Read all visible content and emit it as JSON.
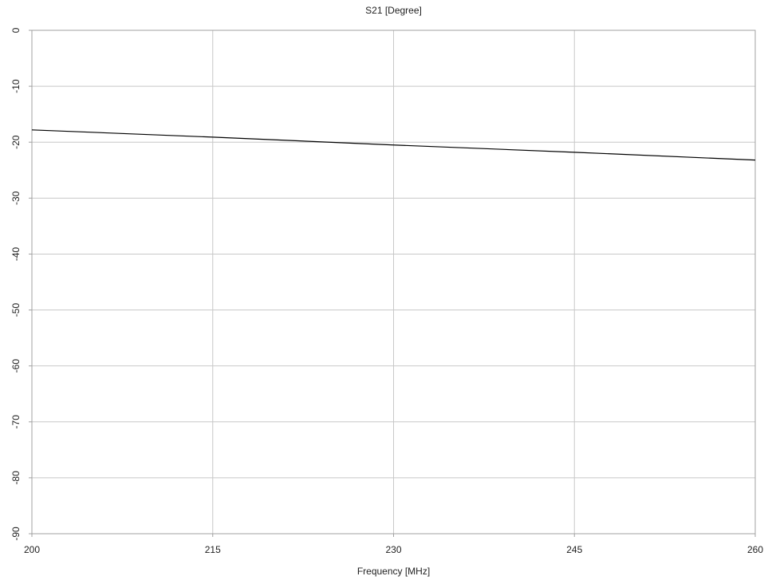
{
  "chart_data": {
    "type": "line",
    "title": "S21 [Degree]",
    "xlabel": "Frequency [MHz]",
    "ylabel": "",
    "xlim": [
      200,
      260
    ],
    "ylim": [
      -90,
      0
    ],
    "x_ticks": [
      200,
      215,
      230,
      245,
      260
    ],
    "y_ticks": [
      0,
      -10,
      -20,
      -30,
      -40,
      -50,
      -60,
      -70,
      -80,
      -90
    ],
    "grid": true,
    "legend": "none",
    "series": [
      {
        "color": "#000000",
        "x": [
          200,
          215,
          230,
          245,
          260
        ],
        "values": [
          -17.8,
          -19.1,
          -20.5,
          -21.8,
          -23.2
        ]
      }
    ]
  },
  "colors": {
    "grid": "#c8c8c8",
    "axis": "#a0a0a0",
    "text": "#222222"
  }
}
